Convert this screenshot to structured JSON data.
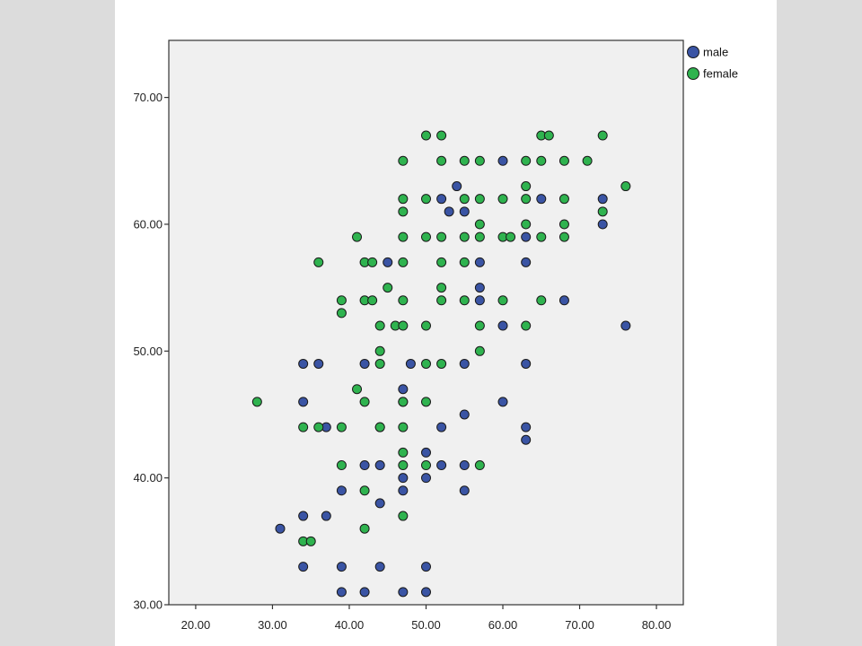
{
  "colors": {
    "page_background": "#dcdcdc",
    "canvas_background": "#ffffff",
    "plot_background": "#f0f0f0",
    "axis": "#333333",
    "male": "#3a54a4",
    "female": "#2fb34f"
  },
  "chart_data": {
    "type": "scatter",
    "title": "",
    "xlabel": "",
    "ylabel": "",
    "xlim": [
      16.5,
      83.5
    ],
    "ylim": [
      30,
      74.5
    ],
    "x_ticks": [
      20,
      30,
      40,
      50,
      60,
      70,
      80
    ],
    "y_ticks": [
      30,
      40,
      50,
      60,
      70
    ],
    "x_tick_labels": [
      "20.00",
      "30.00",
      "40.00",
      "50.00",
      "60.00",
      "70.00",
      "80.00"
    ],
    "y_tick_labels": [
      "30.00",
      "40.00",
      "50.00",
      "60.00",
      "70.00"
    ],
    "grid": false,
    "legend_position": "top-right outside",
    "series": [
      {
        "name": "male",
        "color": "#3a54a4",
        "points": [
          [
            31,
            36
          ],
          [
            34,
            49
          ],
          [
            34,
            46
          ],
          [
            34,
            37
          ],
          [
            34,
            33
          ],
          [
            36,
            49
          ],
          [
            37,
            44
          ],
          [
            37,
            37
          ],
          [
            39,
            39
          ],
          [
            39,
            33
          ],
          [
            39,
            31
          ],
          [
            42,
            49
          ],
          [
            42,
            41
          ],
          [
            42,
            31
          ],
          [
            44,
            41
          ],
          [
            44,
            38
          ],
          [
            44,
            33
          ],
          [
            44,
            44
          ],
          [
            45,
            57
          ],
          [
            47,
            47
          ],
          [
            47,
            46
          ],
          [
            47,
            40
          ],
          [
            47,
            39
          ],
          [
            47,
            31
          ],
          [
            48,
            49
          ],
          [
            50,
            42
          ],
          [
            50,
            40
          ],
          [
            50,
            33
          ],
          [
            50,
            31
          ],
          [
            52,
            62
          ],
          [
            52,
            44
          ],
          [
            52,
            41
          ],
          [
            53,
            61
          ],
          [
            54,
            63
          ],
          [
            55,
            61
          ],
          [
            55,
            49
          ],
          [
            55,
            45
          ],
          [
            55,
            41
          ],
          [
            55,
            39
          ],
          [
            57,
            57
          ],
          [
            57,
            55
          ],
          [
            57,
            54
          ],
          [
            60,
            65
          ],
          [
            60,
            52
          ],
          [
            60,
            46
          ],
          [
            63,
            59
          ],
          [
            63,
            57
          ],
          [
            63,
            49
          ],
          [
            63,
            44
          ],
          [
            63,
            43
          ],
          [
            65,
            62
          ],
          [
            68,
            54
          ],
          [
            73,
            62
          ],
          [
            73,
            60
          ],
          [
            76,
            52
          ]
        ]
      },
      {
        "name": "female",
        "color": "#2fb34f",
        "points": [
          [
            28,
            46
          ],
          [
            34,
            44
          ],
          [
            34,
            35
          ],
          [
            35,
            35
          ],
          [
            36,
            57
          ],
          [
            36,
            44
          ],
          [
            39,
            54
          ],
          [
            39,
            53
          ],
          [
            39,
            44
          ],
          [
            39,
            41
          ],
          [
            41,
            59
          ],
          [
            41,
            47
          ],
          [
            42,
            57
          ],
          [
            42,
            54
          ],
          [
            42,
            46
          ],
          [
            42,
            39
          ],
          [
            42,
            36
          ],
          [
            43,
            57
          ],
          [
            43,
            54
          ],
          [
            44,
            52
          ],
          [
            44,
            50
          ],
          [
            44,
            49
          ],
          [
            44,
            44
          ],
          [
            45,
            55
          ],
          [
            46,
            52
          ],
          [
            47,
            65
          ],
          [
            47,
            62
          ],
          [
            47,
            61
          ],
          [
            47,
            59
          ],
          [
            47,
            57
          ],
          [
            47,
            54
          ],
          [
            47,
            52
          ],
          [
            47,
            46
          ],
          [
            47,
            44
          ],
          [
            47,
            42
          ],
          [
            47,
            41
          ],
          [
            47,
            37
          ],
          [
            50,
            67
          ],
          [
            50,
            62
          ],
          [
            50,
            59
          ],
          [
            50,
            52
          ],
          [
            50,
            49
          ],
          [
            50,
            46
          ],
          [
            50,
            41
          ],
          [
            52,
            67
          ],
          [
            52,
            65
          ],
          [
            52,
            59
          ],
          [
            52,
            57
          ],
          [
            52,
            55
          ],
          [
            52,
            54
          ],
          [
            52,
            49
          ],
          [
            55,
            65
          ],
          [
            55,
            62
          ],
          [
            55,
            59
          ],
          [
            55,
            57
          ],
          [
            55,
            54
          ],
          [
            57,
            65
          ],
          [
            57,
            62
          ],
          [
            57,
            60
          ],
          [
            57,
            59
          ],
          [
            57,
            52
          ],
          [
            57,
            50
          ],
          [
            57,
            41
          ],
          [
            60,
            62
          ],
          [
            60,
            59
          ],
          [
            60,
            54
          ],
          [
            61,
            59
          ],
          [
            63,
            65
          ],
          [
            63,
            63
          ],
          [
            63,
            62
          ],
          [
            63,
            60
          ],
          [
            63,
            52
          ],
          [
            65,
            67
          ],
          [
            65,
            65
          ],
          [
            65,
            59
          ],
          [
            65,
            54
          ],
          [
            66,
            67
          ],
          [
            68,
            65
          ],
          [
            68,
            62
          ],
          [
            68,
            60
          ],
          [
            68,
            59
          ],
          [
            71,
            65
          ],
          [
            73,
            67
          ],
          [
            73,
            61
          ],
          [
            76,
            63
          ]
        ]
      }
    ]
  }
}
